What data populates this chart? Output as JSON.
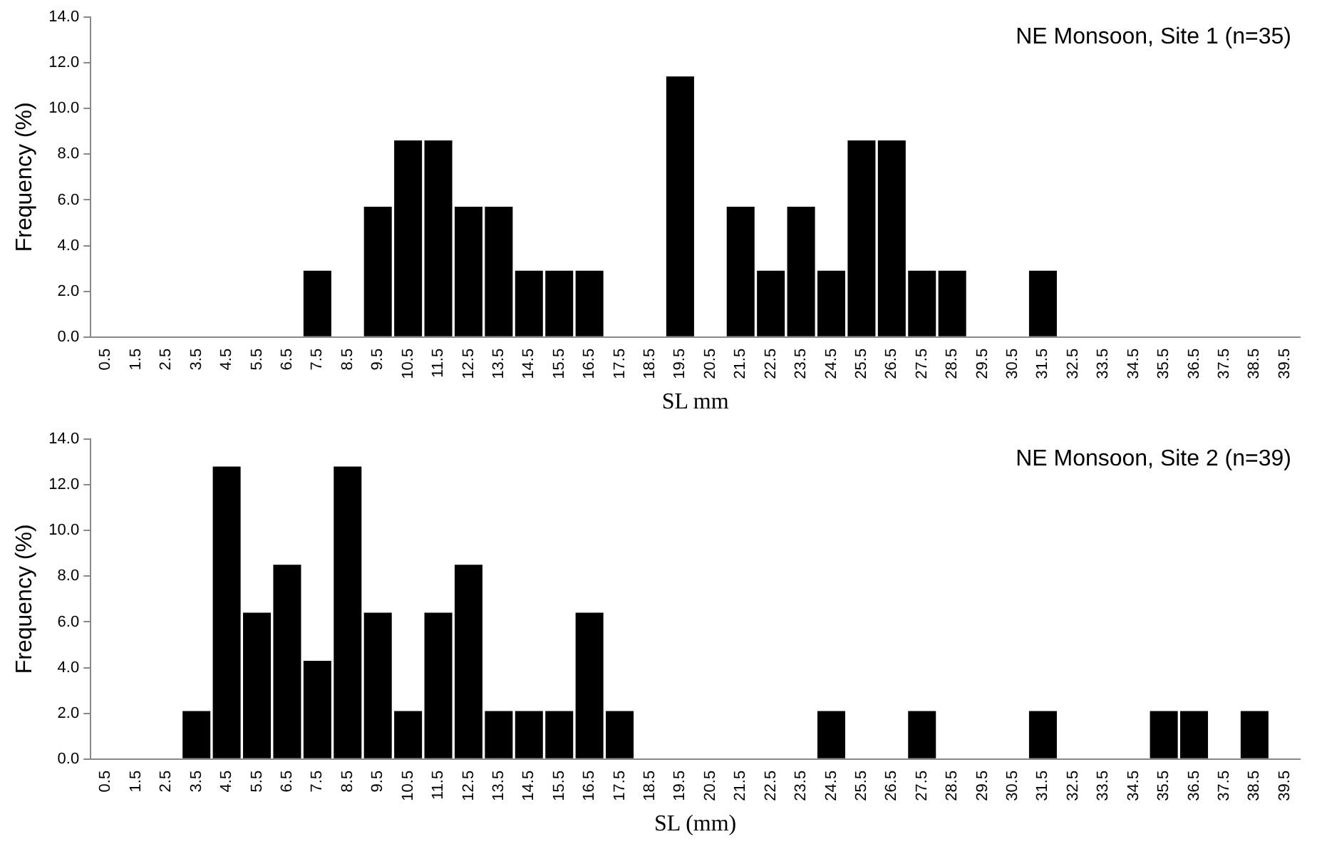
{
  "chart_data": [
    {
      "type": "bar",
      "categories": [
        "0.5",
        "1.5",
        "2.5",
        "3.5",
        "4.5",
        "5.5",
        "6.5",
        "7.5",
        "8.5",
        "9.5",
        "10.5",
        "11.5",
        "12.5",
        "13.5",
        "14.5",
        "15.5",
        "16.5",
        "17.5",
        "18.5",
        "19.5",
        "20.5",
        "21.5",
        "22.5",
        "23.5",
        "24.5",
        "25.5",
        "26.5",
        "27.5",
        "28.5",
        "29.5",
        "30.5",
        "31.5",
        "32.5",
        "33.5",
        "34.5",
        "35.5",
        "36.5",
        "37.5",
        "38.5",
        "39.5"
      ],
      "values": [
        0,
        0,
        0,
        0,
        0,
        0,
        0,
        2.9,
        0,
        5.7,
        8.6,
        8.6,
        5.7,
        5.7,
        2.9,
        2.9,
        2.9,
        0,
        0,
        11.4,
        0,
        5.7,
        2.9,
        5.7,
        2.9,
        8.6,
        8.6,
        2.9,
        2.9,
        0,
        0,
        2.9,
        0,
        0,
        0,
        0,
        0,
        0,
        0,
        0
      ],
      "color": "#000000",
      "xlabel": "SL mm",
      "ylabel": "Frequency (%)",
      "ylim": [
        0,
        14
      ],
      "yticks": [
        {
          "value": 0,
          "label": "0.0"
        },
        {
          "value": 2,
          "label": "2.0"
        },
        {
          "value": 4,
          "label": "4.0"
        },
        {
          "value": 6,
          "label": "6.0"
        },
        {
          "value": 8,
          "label": "8.0"
        },
        {
          "value": 10,
          "label": "10.0"
        },
        {
          "value": 12,
          "label": "12.0"
        },
        {
          "value": 14,
          "label": "14.0"
        }
      ],
      "grid": false,
      "annotations": [
        "NE Monsoon, Site 1 (n=35)"
      ]
    },
    {
      "type": "bar",
      "categories": [
        "0.5",
        "1.5",
        "2.5",
        "3.5",
        "4.5",
        "5.5",
        "6.5",
        "7.5",
        "8.5",
        "9.5",
        "10.5",
        "11.5",
        "12.5",
        "13.5",
        "14.5",
        "15.5",
        "16.5",
        "17.5",
        "18.5",
        "19.5",
        "20.5",
        "21.5",
        "22.5",
        "23.5",
        "24.5",
        "25.5",
        "26.5",
        "27.5",
        "28.5",
        "29.5",
        "30.5",
        "31.5",
        "32.5",
        "33.5",
        "34.5",
        "35.5",
        "36.5",
        "37.5",
        "38.5",
        "39.5"
      ],
      "values": [
        0,
        0,
        0,
        2.1,
        12.8,
        6.4,
        8.5,
        4.3,
        12.8,
        6.4,
        2.1,
        6.4,
        8.5,
        2.1,
        2.1,
        2.1,
        6.4,
        2.1,
        0,
        0,
        0,
        0,
        0,
        0,
        2.1,
        0,
        0,
        2.1,
        0,
        0,
        0,
        2.1,
        0,
        0,
        0,
        2.1,
        2.1,
        0,
        2.1,
        0
      ],
      "color": "#000000",
      "xlabel": "SL (mm)",
      "ylabel": "Frequency (%)",
      "ylim": [
        0,
        14
      ],
      "yticks": [
        {
          "value": 0,
          "label": "0.0"
        },
        {
          "value": 2,
          "label": "2.0"
        },
        {
          "value": 4,
          "label": "4.0"
        },
        {
          "value": 6,
          "label": "6.0"
        },
        {
          "value": 8,
          "label": "8.0"
        },
        {
          "value": 10,
          "label": "10.0"
        },
        {
          "value": 12,
          "label": "12.0"
        },
        {
          "value": 14,
          "label": "14.0"
        }
      ],
      "grid": false,
      "annotations": [
        "NE Monsoon, Site 2 (n=39)"
      ]
    }
  ]
}
